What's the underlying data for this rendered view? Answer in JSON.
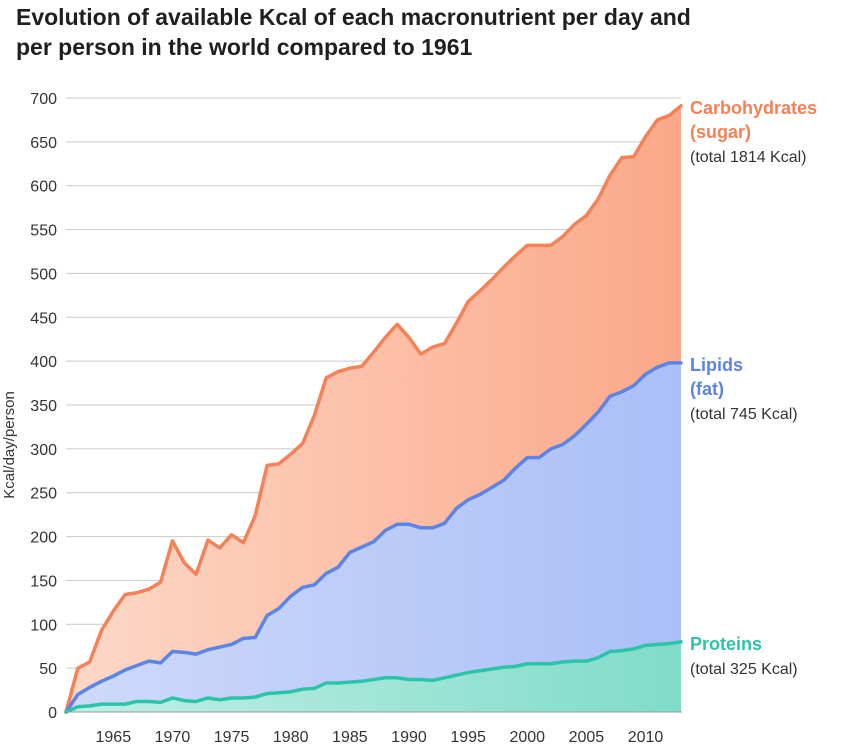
{
  "chart_data": {
    "type": "area",
    "title": "Evolution of available Kcal of each macronutrient per day and per person in the world compared to 1961",
    "ylabel": "Kcal/day/person",
    "xlabel": "",
    "ylim": [
      0,
      700
    ],
    "xlim": [
      1961,
      2013
    ],
    "y_ticks": [
      0,
      50,
      100,
      150,
      200,
      250,
      300,
      350,
      400,
      450,
      500,
      550,
      600,
      650,
      700
    ],
    "x_ticks": [
      1965,
      1970,
      1975,
      1980,
      1985,
      1990,
      1995,
      2000,
      2005,
      2010
    ],
    "grid": "horizontal",
    "legend": "inline-right",
    "x": [
      1961,
      1962,
      1963,
      1964,
      1965,
      1966,
      1967,
      1968,
      1969,
      1970,
      1971,
      1972,
      1973,
      1974,
      1975,
      1976,
      1977,
      1978,
      1979,
      1980,
      1981,
      1982,
      1983,
      1984,
      1985,
      1986,
      1987,
      1988,
      1989,
      1990,
      1991,
      1992,
      1993,
      1994,
      1995,
      1996,
      1997,
      1998,
      1999,
      2000,
      2001,
      2002,
      2003,
      2004,
      2005,
      2006,
      2007,
      2008,
      2009,
      2010,
      2011,
      2012,
      2013
    ],
    "series": [
      {
        "name": "Carbohydrates (sugar)",
        "label_name": [
          "Carbohydrates",
          "(sugar)"
        ],
        "total": "(total 1814 Kcal)",
        "line_color": "#f58256",
        "fill_top": "#fcd8c8",
        "fill_bottom": "#fba888",
        "values": [
          0,
          50,
          57,
          93,
          115,
          134,
          136,
          140,
          148,
          195,
          170,
          157,
          196,
          187,
          202,
          193,
          224,
          281,
          283,
          294,
          306,
          338,
          381,
          388,
          392,
          394,
          410,
          427,
          442,
          427,
          408,
          416,
          420,
          443,
          468,
          480,
          493,
          507,
          520,
          532,
          532,
          532,
          542,
          556,
          566,
          585,
          612,
          632,
          633,
          656,
          675,
          680,
          691
        ]
      },
      {
        "name": "Lipids (fat)",
        "label_name": [
          "Lipids",
          "(fat)"
        ],
        "total": "(total 745 Kcal)",
        "line_color": "#5b84e8",
        "fill_top": "#cfdafa",
        "fill_bottom": "#a9bff7",
        "values": [
          0,
          20,
          28,
          35,
          41,
          48,
          53,
          58,
          56,
          69,
          68,
          66,
          71,
          74,
          77,
          84,
          85,
          110,
          118,
          132,
          142,
          145,
          158,
          165,
          182,
          188,
          194,
          207,
          214,
          214,
          210,
          210,
          215,
          232,
          242,
          248,
          256,
          264,
          278,
          290,
          290,
          300,
          305,
          315,
          328,
          342,
          360,
          365,
          372,
          385,
          393,
          398,
          398
        ]
      },
      {
        "name": "Proteins",
        "label_name": [
          "Proteins"
        ],
        "total": "(total 325 Kcal)",
        "line_color": "#2bc4a8",
        "fill_top": "#c2efe6",
        "fill_bottom": "#80dcc8",
        "values": [
          0,
          6,
          7,
          9,
          9,
          9,
          12,
          12,
          11,
          16,
          13,
          12,
          16,
          14,
          16,
          16,
          17,
          21,
          22,
          23,
          26,
          27,
          33,
          33,
          34,
          35,
          37,
          39,
          39,
          37,
          37,
          36,
          39,
          42,
          45,
          47,
          49,
          51,
          52,
          55,
          55,
          55,
          57,
          58,
          58,
          62,
          69,
          70,
          72,
          76,
          77,
          78,
          80
        ]
      }
    ]
  }
}
